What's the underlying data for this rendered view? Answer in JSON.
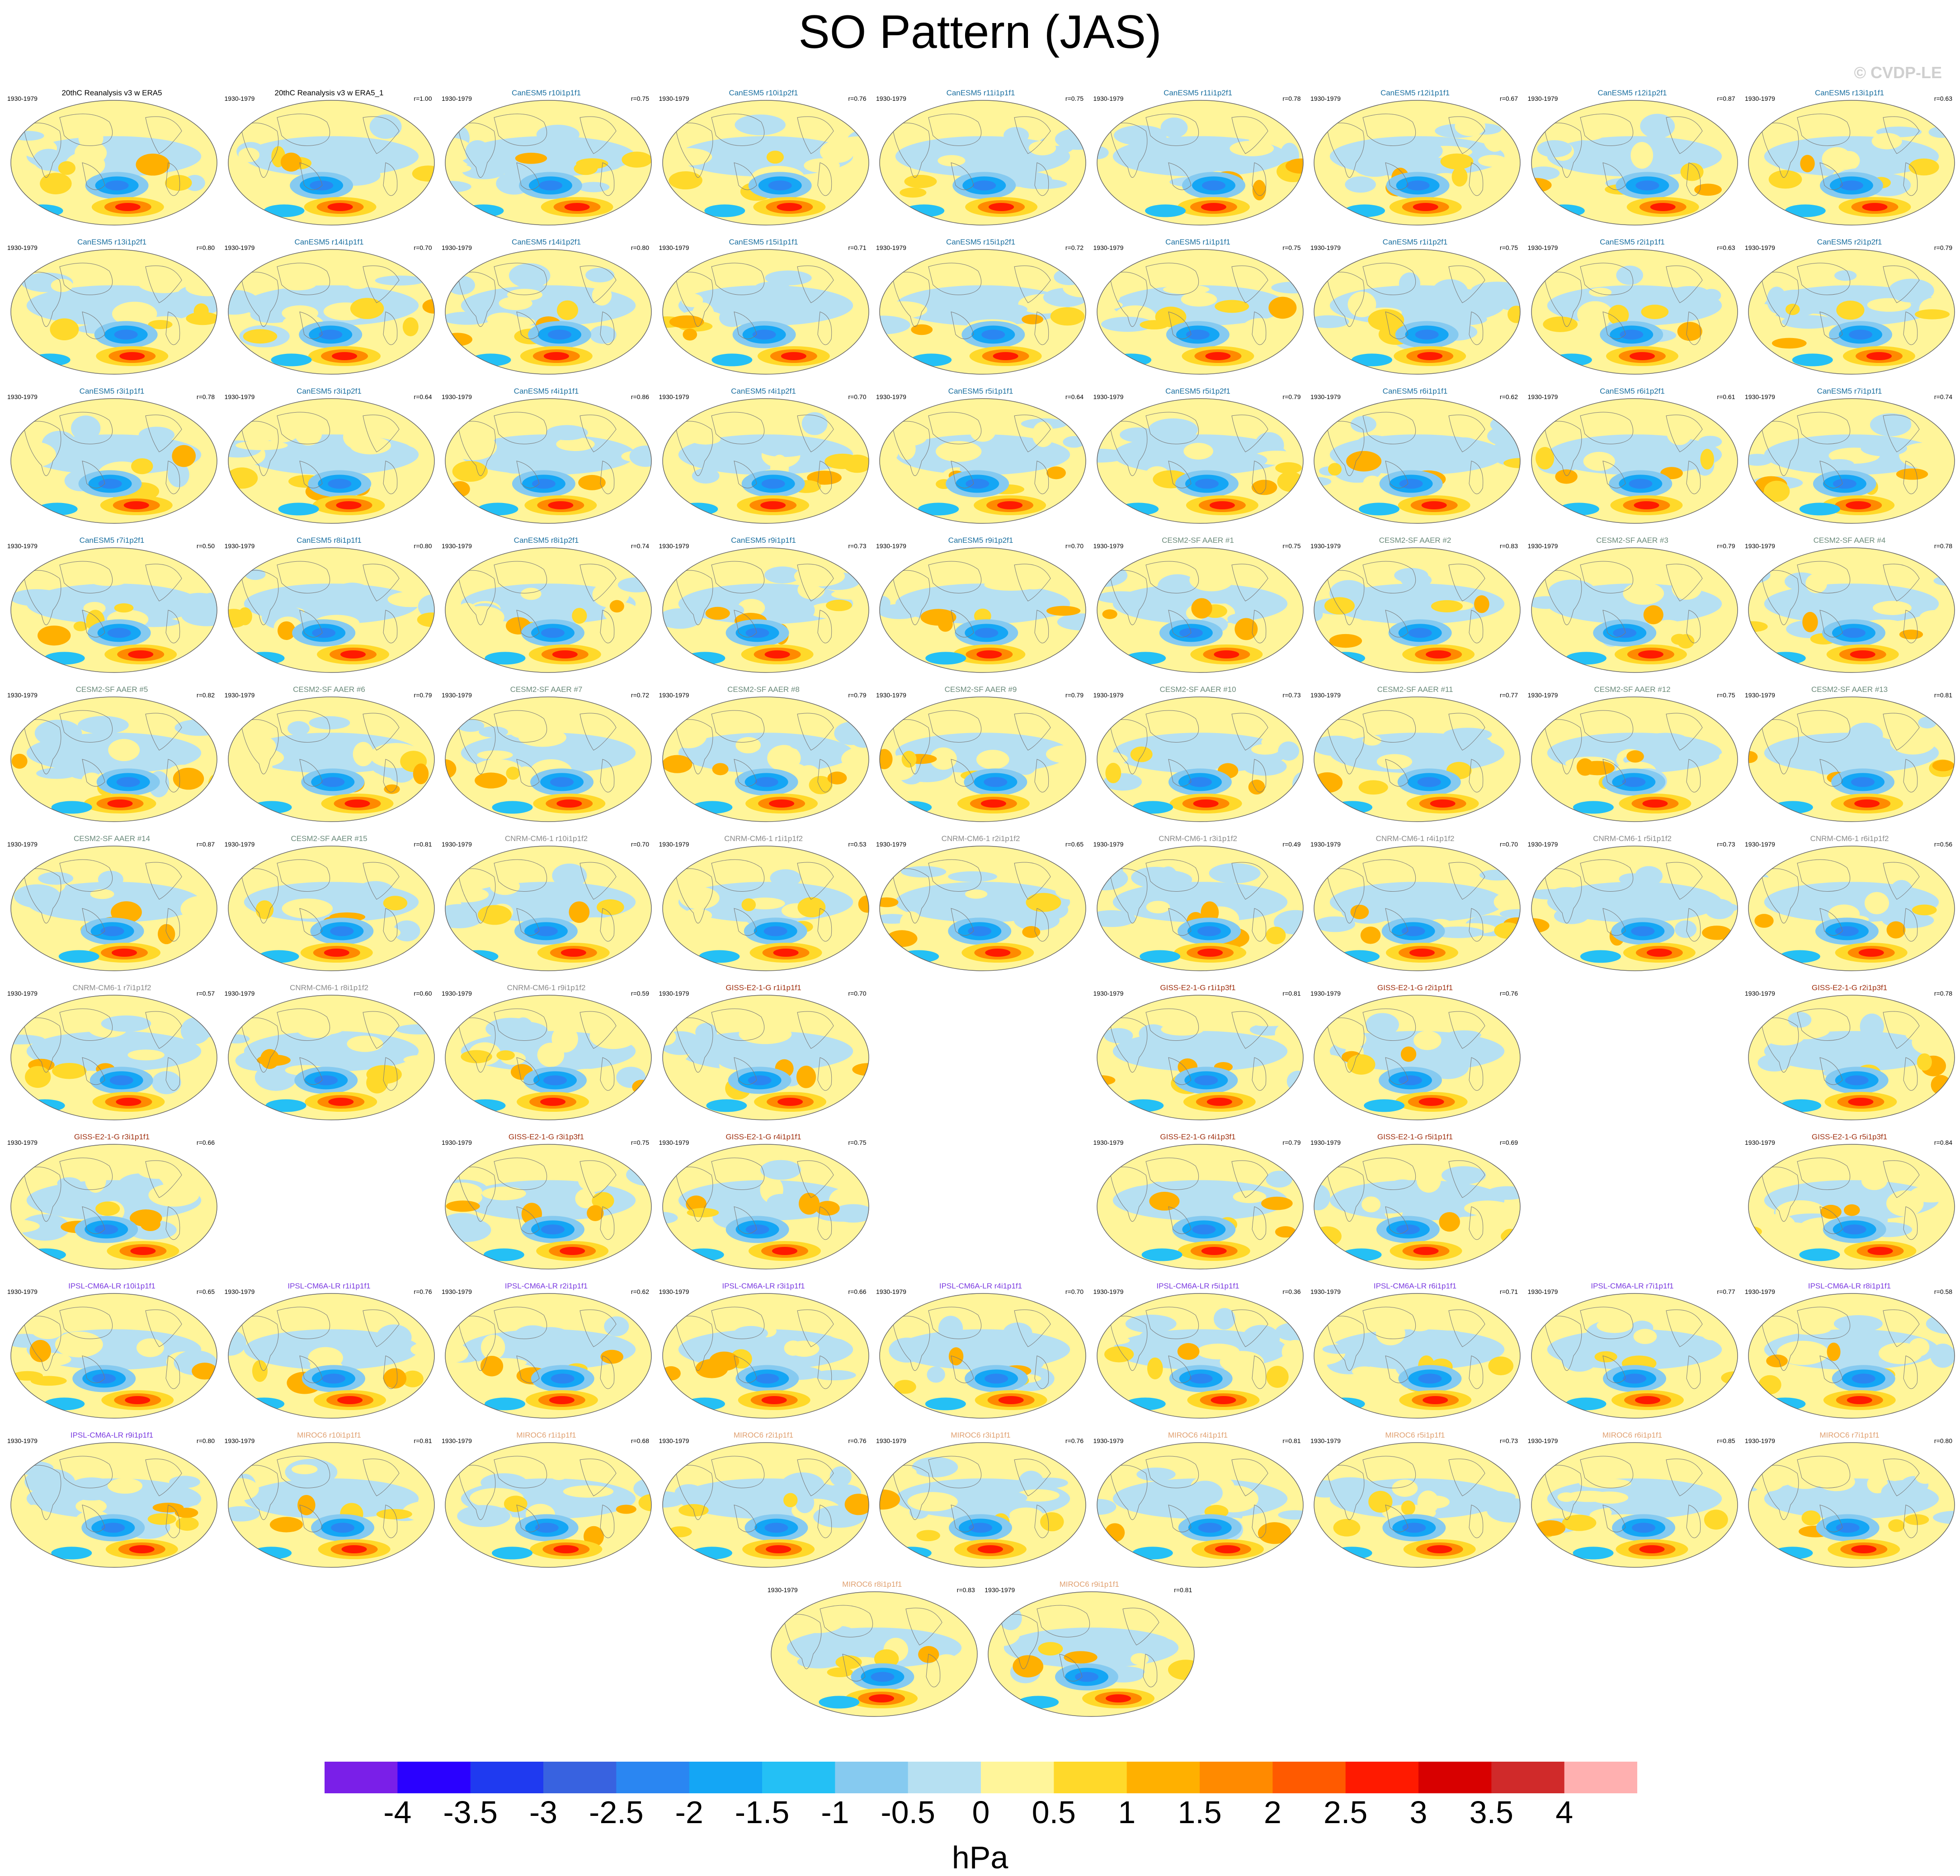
{
  "title": "SO Pattern (JAS)",
  "copyright": "© CVDP-LE",
  "period": "1930-1979",
  "units": "hPa",
  "colorbar": {
    "labels": [
      "-4",
      "-3.5",
      "-3",
      "-2.5",
      "-2",
      "-1.5",
      "-1",
      "-0.5",
      "0",
      "0.5",
      "1",
      "1.5",
      "2",
      "2.5",
      "3",
      "3.5",
      "4"
    ],
    "colors": [
      "#7a1fe8",
      "#2a00ff",
      "#1f3af0",
      "#3862e0",
      "#2a86f2",
      "#14a6f5",
      "#24c0f5",
      "#86caf0",
      "#b6e0f2",
      "#fff59a",
      "#ffd92a",
      "#ffb000",
      "#ff8a00",
      "#ff5a00",
      "#ff1a00",
      "#d80000",
      "#d02a2a",
      "#ffb0b0"
    ]
  },
  "panels": [
    {
      "label": "20thC Reanalysis v3 w ERA5",
      "r": "",
      "color": "#000000",
      "col": 0,
      "row": 0
    },
    {
      "label": "20thC Reanalysis v3 w ERA5_1",
      "r": "r=1.00",
      "color": "#000000",
      "col": 1,
      "row": 0
    },
    {
      "label": "CanESM5 r10i1p1f1",
      "r": "r=0.75",
      "color": "#1a6fa0",
      "col": 2,
      "row": 0
    },
    {
      "label": "CanESM5 r10i1p2f1",
      "r": "r=0.76",
      "color": "#1a6fa0",
      "col": 3,
      "row": 0
    },
    {
      "label": "CanESM5 r11i1p1f1",
      "r": "r=0.75",
      "color": "#1a6fa0",
      "col": 4,
      "row": 0
    },
    {
      "label": "CanESM5 r11i1p2f1",
      "r": "r=0.78",
      "color": "#1a6fa0",
      "col": 5,
      "row": 0
    },
    {
      "label": "CanESM5 r12i1p1f1",
      "r": "r=0.67",
      "color": "#1a6fa0",
      "col": 6,
      "row": 0
    },
    {
      "label": "CanESM5 r12i1p2f1",
      "r": "r=0.87",
      "color": "#1a6fa0",
      "col": 7,
      "row": 0
    },
    {
      "label": "CanESM5 r13i1p1f1",
      "r": "r=0.63",
      "color": "#1a6fa0",
      "col": 8,
      "row": 0
    },
    {
      "label": "CanESM5 r13i1p2f1",
      "r": "r=0.80",
      "color": "#1a6fa0",
      "col": 0,
      "row": 1
    },
    {
      "label": "CanESM5 r14i1p1f1",
      "r": "r=0.70",
      "color": "#1a6fa0",
      "col": 1,
      "row": 1
    },
    {
      "label": "CanESM5 r14i1p2f1",
      "r": "r=0.80",
      "color": "#1a6fa0",
      "col": 2,
      "row": 1
    },
    {
      "label": "CanESM5 r15i1p1f1",
      "r": "r=0.71",
      "color": "#1a6fa0",
      "col": 3,
      "row": 1
    },
    {
      "label": "CanESM5 r15i1p2f1",
      "r": "r=0.72",
      "color": "#1a6fa0",
      "col": 4,
      "row": 1
    },
    {
      "label": "CanESM5 r1i1p1f1",
      "r": "r=0.75",
      "color": "#1a6fa0",
      "col": 5,
      "row": 1
    },
    {
      "label": "CanESM5 r1i1p2f1",
      "r": "r=0.75",
      "color": "#1a6fa0",
      "col": 6,
      "row": 1
    },
    {
      "label": "CanESM5 r2i1p1f1",
      "r": "r=0.63",
      "color": "#1a6fa0",
      "col": 7,
      "row": 1
    },
    {
      "label": "CanESM5 r2i1p2f1",
      "r": "r=0.79",
      "color": "#1a6fa0",
      "col": 8,
      "row": 1
    },
    {
      "label": "CanESM5 r3i1p1f1",
      "r": "r=0.78",
      "color": "#1a6fa0",
      "col": 0,
      "row": 2
    },
    {
      "label": "CanESM5 r3i1p2f1",
      "r": "r=0.64",
      "color": "#1a6fa0",
      "col": 1,
      "row": 2
    },
    {
      "label": "CanESM5 r4i1p1f1",
      "r": "r=0.86",
      "color": "#1a6fa0",
      "col": 2,
      "row": 2
    },
    {
      "label": "CanESM5 r4i1p2f1",
      "r": "r=0.70",
      "color": "#1a6fa0",
      "col": 3,
      "row": 2
    },
    {
      "label": "CanESM5 r5i1p1f1",
      "r": "r=0.64",
      "color": "#1a6fa0",
      "col": 4,
      "row": 2
    },
    {
      "label": "CanESM5 r5i1p2f1",
      "r": "r=0.79",
      "color": "#1a6fa0",
      "col": 5,
      "row": 2
    },
    {
      "label": "CanESM5 r6i1p1f1",
      "r": "r=0.62",
      "color": "#1a6fa0",
      "col": 6,
      "row": 2
    },
    {
      "label": "CanESM5 r6i1p2f1",
      "r": "r=0.61",
      "color": "#1a6fa0",
      "col": 7,
      "row": 2
    },
    {
      "label": "CanESM5 r7i1p1f1",
      "r": "r=0.74",
      "color": "#1a6fa0",
      "col": 8,
      "row": 2
    },
    {
      "label": "CanESM5 r7i1p2f1",
      "r": "r=0.50",
      "color": "#1a6fa0",
      "col": 0,
      "row": 3
    },
    {
      "label": "CanESM5 r8i1p1f1",
      "r": "r=0.80",
      "color": "#1a6fa0",
      "col": 1,
      "row": 3
    },
    {
      "label": "CanESM5 r8i1p2f1",
      "r": "r=0.74",
      "color": "#1a6fa0",
      "col": 2,
      "row": 3
    },
    {
      "label": "CanESM5 r9i1p1f1",
      "r": "r=0.73",
      "color": "#1a6fa0",
      "col": 3,
      "row": 3
    },
    {
      "label": "CanESM5 r9i1p2f1",
      "r": "r=0.70",
      "color": "#1a6fa0",
      "col": 4,
      "row": 3
    },
    {
      "label": "CESM2-SF AAER #1",
      "r": "r=0.75",
      "color": "#6a8a7a",
      "col": 5,
      "row": 3
    },
    {
      "label": "CESM2-SF AAER #2",
      "r": "r=0.83",
      "color": "#6a8a7a",
      "col": 6,
      "row": 3
    },
    {
      "label": "CESM2-SF AAER #3",
      "r": "r=0.79",
      "color": "#6a8a7a",
      "col": 7,
      "row": 3
    },
    {
      "label": "CESM2-SF AAER #4",
      "r": "r=0.78",
      "color": "#6a8a7a",
      "col": 8,
      "row": 3
    },
    {
      "label": "CESM2-SF AAER #5",
      "r": "r=0.82",
      "color": "#6a8a7a",
      "col": 0,
      "row": 4
    },
    {
      "label": "CESM2-SF AAER #6",
      "r": "r=0.79",
      "color": "#6a8a7a",
      "col": 1,
      "row": 4
    },
    {
      "label": "CESM2-SF AAER #7",
      "r": "r=0.72",
      "color": "#6a8a7a",
      "col": 2,
      "row": 4
    },
    {
      "label": "CESM2-SF AAER #8",
      "r": "r=0.79",
      "color": "#6a8a7a",
      "col": 3,
      "row": 4
    },
    {
      "label": "CESM2-SF AAER #9",
      "r": "r=0.79",
      "color": "#6a8a7a",
      "col": 4,
      "row": 4
    },
    {
      "label": "CESM2-SF AAER #10",
      "r": "r=0.73",
      "color": "#6a8a7a",
      "col": 5,
      "row": 4
    },
    {
      "label": "CESM2-SF AAER #11",
      "r": "r=0.77",
      "color": "#6a8a7a",
      "col": 6,
      "row": 4
    },
    {
      "label": "CESM2-SF AAER #12",
      "r": "r=0.75",
      "color": "#6a8a7a",
      "col": 7,
      "row": 4
    },
    {
      "label": "CESM2-SF AAER #13",
      "r": "r=0.81",
      "color": "#6a8a7a",
      "col": 8,
      "row": 4
    },
    {
      "label": "CESM2-SF AAER #14",
      "r": "r=0.87",
      "color": "#6a8a7a",
      "col": 0,
      "row": 5
    },
    {
      "label": "CESM2-SF AAER #15",
      "r": "r=0.81",
      "color": "#6a8a7a",
      "col": 1,
      "row": 5
    },
    {
      "label": "CNRM-CM6-1 r10i1p1f2",
      "r": "r=0.70",
      "color": "#8a8a8a",
      "col": 2,
      "row": 5
    },
    {
      "label": "CNRM-CM6-1 r1i1p1f2",
      "r": "r=0.53",
      "color": "#8a8a8a",
      "col": 3,
      "row": 5
    },
    {
      "label": "CNRM-CM6-1 r2i1p1f2",
      "r": "r=0.65",
      "color": "#8a8a8a",
      "col": 4,
      "row": 5
    },
    {
      "label": "CNRM-CM6-1 r3i1p1f2",
      "r": "r=0.49",
      "color": "#8a8a8a",
      "col": 5,
      "row": 5
    },
    {
      "label": "CNRM-CM6-1 r4i1p1f2",
      "r": "r=0.70",
      "color": "#8a8a8a",
      "col": 6,
      "row": 5
    },
    {
      "label": "CNRM-CM6-1 r5i1p1f2",
      "r": "r=0.73",
      "color": "#8a8a8a",
      "col": 7,
      "row": 5
    },
    {
      "label": "CNRM-CM6-1 r6i1p1f2",
      "r": "r=0.56",
      "color": "#8a8a8a",
      "col": 8,
      "row": 5
    },
    {
      "label": "CNRM-CM6-1 r7i1p1f2",
      "r": "r=0.57",
      "color": "#8a8a8a",
      "col": 0,
      "row": 6
    },
    {
      "label": "CNRM-CM6-1 r8i1p1f2",
      "r": "r=0.60",
      "color": "#8a8a8a",
      "col": 1,
      "row": 6
    },
    {
      "label": "CNRM-CM6-1 r9i1p1f2",
      "r": "r=0.59",
      "color": "#8a8a8a",
      "col": 2,
      "row": 6
    },
    {
      "label": "GISS-E2-1-G r1i1p1f1",
      "r": "r=0.70",
      "color": "#a03010",
      "col": 3,
      "row": 6
    },
    {
      "label": "GISS-E2-1-G r1i1p3f1",
      "r": "r=0.81",
      "color": "#a03010",
      "col": 5,
      "row": 6
    },
    {
      "label": "GISS-E2-1-G r2i1p1f1",
      "r": "r=0.76",
      "color": "#a03010",
      "col": 6,
      "row": 6
    },
    {
      "label": "GISS-E2-1-G r2i1p3f1",
      "r": "r=0.78",
      "color": "#a03010",
      "col": 8,
      "row": 6
    },
    {
      "label": "GISS-E2-1-G r3i1p1f1",
      "r": "r=0.66",
      "color": "#a03010",
      "col": 0,
      "row": 7
    },
    {
      "label": "GISS-E2-1-G r3i1p3f1",
      "r": "r=0.75",
      "color": "#a03010",
      "col": 2,
      "row": 7
    },
    {
      "label": "GISS-E2-1-G r4i1p1f1",
      "r": "r=0.75",
      "color": "#a03010",
      "col": 3,
      "row": 7
    },
    {
      "label": "GISS-E2-1-G r4i1p3f1",
      "r": "r=0.79",
      "color": "#a03010",
      "col": 5,
      "row": 7
    },
    {
      "label": "GISS-E2-1-G r5i1p1f1",
      "r": "r=0.69",
      "color": "#a03010",
      "col": 6,
      "row": 7
    },
    {
      "label": "GISS-E2-1-G r5i1p3f1",
      "r": "r=0.84",
      "color": "#a03010",
      "col": 8,
      "row": 7
    },
    {
      "label": "IPSL-CM6A-LR r10i1p1f1",
      "r": "r=0.65",
      "color": "#7a3ae0",
      "col": 0,
      "row": 8
    },
    {
      "label": "IPSL-CM6A-LR r1i1p1f1",
      "r": "r=0.76",
      "color": "#7a3ae0",
      "col": 1,
      "row": 8
    },
    {
      "label": "IPSL-CM6A-LR r2i1p1f1",
      "r": "r=0.62",
      "color": "#7a3ae0",
      "col": 2,
      "row": 8
    },
    {
      "label": "IPSL-CM6A-LR r3i1p1f1",
      "r": "r=0.66",
      "color": "#7a3ae0",
      "col": 3,
      "row": 8
    },
    {
      "label": "IPSL-CM6A-LR r4i1p1f1",
      "r": "r=0.70",
      "color": "#7a3ae0",
      "col": 4,
      "row": 8
    },
    {
      "label": "IPSL-CM6A-LR r5i1p1f1",
      "r": "r=0.36",
      "color": "#7a3ae0",
      "col": 5,
      "row": 8
    },
    {
      "label": "IPSL-CM6A-LR r6i1p1f1",
      "r": "r=0.71",
      "color": "#7a3ae0",
      "col": 6,
      "row": 8
    },
    {
      "label": "IPSL-CM6A-LR r7i1p1f1",
      "r": "r=0.77",
      "color": "#7a3ae0",
      "col": 7,
      "row": 8
    },
    {
      "label": "IPSL-CM6A-LR r8i1p1f1",
      "r": "r=0.58",
      "color": "#7a3ae0",
      "col": 8,
      "row": 8
    },
    {
      "label": "IPSL-CM6A-LR r9i1p1f1",
      "r": "r=0.80",
      "color": "#7a3ae0",
      "col": 0,
      "row": 9
    },
    {
      "label": "MIROC6 r10i1p1f1",
      "r": "r=0.81",
      "color": "#e0a070",
      "col": 1,
      "row": 9
    },
    {
      "label": "MIROC6 r1i1p1f1",
      "r": "r=0.68",
      "color": "#e0a070",
      "col": 2,
      "row": 9
    },
    {
      "label": "MIROC6 r2i1p1f1",
      "r": "r=0.76",
      "color": "#e0a070",
      "col": 3,
      "row": 9
    },
    {
      "label": "MIROC6 r3i1p1f1",
      "r": "r=0.76",
      "color": "#e0a070",
      "col": 4,
      "row": 9
    },
    {
      "label": "MIROC6 r4i1p1f1",
      "r": "r=0.81",
      "color": "#e0a070",
      "col": 5,
      "row": 9
    },
    {
      "label": "MIROC6 r5i1p1f1",
      "r": "r=0.73",
      "color": "#e0a070",
      "col": 6,
      "row": 9
    },
    {
      "label": "MIROC6 r6i1p1f1",
      "r": "r=0.85",
      "color": "#e0a070",
      "col": 7,
      "row": 9
    },
    {
      "label": "MIROC6 r7i1p1f1",
      "r": "r=0.80",
      "color": "#e0a070",
      "col": 8,
      "row": 9
    },
    {
      "label": "MIROC6 r8i1p1f1",
      "r": "r=0.83",
      "color": "#e0a070",
      "col": 3.5,
      "row": 10
    },
    {
      "label": "MIROC6 r9i1p1f1",
      "r": "r=0.81",
      "color": "#e0a070",
      "col": 4.5,
      "row": 10
    }
  ]
}
